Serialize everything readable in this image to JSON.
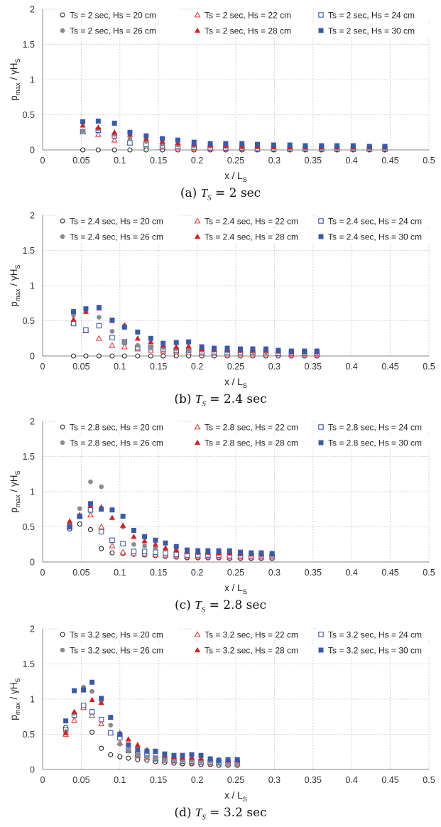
{
  "colors": {
    "open_circle": "#222222",
    "open_triangle": "#e03c3c",
    "open_square": "#3a5aa8",
    "filled_circle": "#8a8a8a",
    "filled_triangle": "#d42020",
    "filled_square": "#3a5aa8"
  },
  "chart_data": [
    {
      "type": "scatter",
      "caption_prefix": "(a)",
      "caption_value": "= 2 sec",
      "xlabel": "x / L",
      "xlabel_sub": "S",
      "ylabel": "p",
      "ylabel_sub": "max",
      "ylabel_tail": " / γH",
      "ylabel_sub2": "S",
      "xlim": [
        0,
        0.5
      ],
      "ylim": [
        0,
        2
      ],
      "xticks": [
        "0",
        "0.05",
        "0.1",
        "0.15",
        "0.2",
        "0.25",
        "0.3",
        "0.35",
        "0.4",
        "0.45",
        "0.5"
      ],
      "yticks": [
        "0",
        "0.5",
        "1",
        "1.5",
        "2"
      ],
      "grid": true,
      "legend_position": "top",
      "x": [
        0.052,
        0.072,
        0.093,
        0.113,
        0.134,
        0.155,
        0.175,
        0.196,
        0.217,
        0.237,
        0.258,
        0.278,
        0.299,
        0.32,
        0.34,
        0.361,
        0.381,
        0.402,
        0.423,
        0.443
      ],
      "series": [
        {
          "name": "Ts = 2 sec, Hs = 20 cm",
          "marker": "circle-open",
          "values": [
            0,
            0,
            0,
            0,
            0,
            0,
            0,
            0,
            0,
            0,
            0,
            0,
            0,
            0,
            0,
            0,
            0,
            0,
            0,
            0
          ]
        },
        {
          "name": "Ts = 2 sec, Hs = 22 cm",
          "marker": "triangle-open",
          "values": [
            0.26,
            0.22,
            0.14,
            0.1,
            0.06,
            0.04,
            0.03,
            0.02,
            0.02,
            0.02,
            0.02,
            0.01,
            0.01,
            0.01,
            0.01,
            0.01,
            0.01,
            0.01,
            0.01,
            0.01
          ]
        },
        {
          "name": "Ts = 2 sec, Hs = 24 cm",
          "marker": "square-open",
          "values": [
            0.26,
            0.28,
            0.2,
            0.1,
            0.08,
            0.06,
            0.05,
            0.04,
            0.03,
            0.03,
            0.03,
            0.02,
            0.02,
            0.02,
            0.02,
            0.02,
            0.02,
            0.02,
            0.02,
            0.02
          ]
        },
        {
          "name": "Ts = 2 sec, Hs = 26 cm",
          "marker": "circle-filled",
          "values": [
            0.27,
            0.3,
            0.22,
            0.16,
            0.12,
            0.08,
            0.07,
            0.06,
            0.05,
            0.05,
            0.04,
            0.04,
            0.04,
            0.03,
            0.03,
            0.03,
            0.03,
            0.03,
            0.03,
            0.03
          ]
        },
        {
          "name": "Ts = 2 sec, Hs = 28 cm",
          "marker": "triangle-filled",
          "values": [
            0.35,
            0.32,
            0.25,
            0.22,
            0.16,
            0.12,
            0.1,
            0.08,
            0.07,
            0.06,
            0.05,
            0.05,
            0.04,
            0.04,
            0.04,
            0.04,
            0.04,
            0.04,
            0.04,
            0.04
          ]
        },
        {
          "name": "Ts = 2 sec, Hs = 30 cm",
          "marker": "square-filled",
          "values": [
            0.4,
            0.41,
            0.38,
            0.25,
            0.2,
            0.16,
            0.14,
            0.11,
            0.09,
            0.09,
            0.09,
            0.08,
            0.07,
            0.07,
            0.06,
            0.06,
            0.06,
            0.06,
            0.05,
            0.05
          ]
        }
      ]
    },
    {
      "type": "scatter",
      "caption_prefix": "(b)",
      "caption_value": "= 2.4 sec",
      "xlabel": "x / L",
      "xlabel_sub": "S",
      "ylabel": "p",
      "ylabel_sub": "max",
      "ylabel_tail": " / γH",
      "ylabel_sub2": "S",
      "xlim": [
        0,
        0.5
      ],
      "ylim": [
        0,
        2
      ],
      "xticks": [
        "0",
        "0.05",
        "0.1",
        "0.15",
        "0.2",
        "0.25",
        "0.3",
        "0.35",
        "0.4",
        "0.45",
        "0.5"
      ],
      "yticks": [
        "0",
        "0.5",
        "1",
        "1.5",
        "2"
      ],
      "grid": true,
      "legend_position": "top",
      "x": [
        0.04,
        0.056,
        0.073,
        0.09,
        0.106,
        0.123,
        0.14,
        0.156,
        0.173,
        0.189,
        0.206,
        0.222,
        0.239,
        0.256,
        0.272,
        0.289,
        0.305,
        0.322,
        0.339,
        0.355
      ],
      "series": [
        {
          "name": "Ts = 2.4 sec, Hs = 20 cm",
          "marker": "circle-open",
          "values": [
            0,
            0,
            0,
            0,
            0,
            0,
            0,
            0,
            0,
            0,
            0,
            0,
            0,
            0,
            0,
            0,
            0,
            0,
            0,
            0
          ]
        },
        {
          "name": "Ts = 2.4 sec, Hs = 22 cm",
          "marker": "triangle-open",
          "values": [
            0.47,
            0.36,
            0.25,
            0.15,
            0.13,
            0.1,
            0.08,
            0.07,
            0.06,
            0.05,
            0.04,
            0.04,
            0.03,
            0.03,
            0.03,
            0.03,
            0.03,
            0.02,
            0.02,
            0.02
          ]
        },
        {
          "name": "Ts = 2.4 sec, Hs = 24 cm",
          "marker": "square-open",
          "values": [
            0.46,
            0.37,
            0.43,
            0.26,
            0.2,
            0.12,
            0.12,
            0.1,
            0.08,
            0.08,
            0.06,
            0.06,
            0.05,
            0.05,
            0.05,
            0.05,
            0.04,
            0.04,
            0.04,
            0.04
          ]
        },
        {
          "name": "Ts = 2.4 sec, Hs = 26 cm",
          "marker": "circle-filled",
          "values": [
            0.58,
            0.65,
            0.55,
            0.35,
            0.2,
            0.15,
            0.13,
            0.12,
            0.1,
            0.09,
            0.08,
            0.08,
            0.07,
            0.07,
            0.06,
            0.06,
            0.06,
            0.05,
            0.05,
            0.05
          ]
        },
        {
          "name": "Ts = 2.4 sec, Hs = 28 cm",
          "marker": "triangle-filled",
          "values": [
            0.52,
            0.63,
            0.68,
            0.5,
            0.44,
            0.25,
            0.2,
            0.15,
            0.13,
            0.14,
            0.1,
            0.09,
            0.09,
            0.08,
            0.08,
            0.08,
            0.07,
            0.06,
            0.06,
            0.06
          ]
        },
        {
          "name": "Ts = 2.4 sec, Hs = 30 cm",
          "marker": "square-filled",
          "values": [
            0.63,
            0.67,
            0.69,
            0.51,
            0.41,
            0.34,
            0.25,
            0.18,
            0.19,
            0.2,
            0.13,
            0.11,
            0.11,
            0.1,
            0.1,
            0.1,
            0.08,
            0.07,
            0.07,
            0.07
          ]
        }
      ]
    },
    {
      "type": "scatter",
      "caption_prefix": "(c)",
      "caption_value": "= 2.8 sec",
      "xlabel": "x / L",
      "xlabel_sub": "S",
      "ylabel": "p",
      "ylabel_sub": "max",
      "ylabel_tail": " / γH",
      "ylabel_sub2": "S",
      "xlim": [
        0,
        0.5
      ],
      "ylim": [
        0,
        2
      ],
      "xticks": [
        "0",
        "0.05",
        "0.1",
        "0.15",
        "0.2",
        "0.25",
        "0.3",
        "0.35",
        "0.4",
        "0.45",
        "0.5"
      ],
      "yticks": [
        "0",
        "0.5",
        "1",
        "1.5",
        "2"
      ],
      "grid": true,
      "legend_position": "top",
      "x": [
        0.035,
        0.048,
        0.062,
        0.076,
        0.09,
        0.104,
        0.118,
        0.132,
        0.146,
        0.159,
        0.173,
        0.187,
        0.201,
        0.214,
        0.228,
        0.242,
        0.256,
        0.27,
        0.283,
        0.297
      ],
      "series": [
        {
          "name": "Ts = 2.8 sec, Hs = 20 cm",
          "marker": "circle-open",
          "values": [
            0.47,
            0.54,
            0.46,
            0.19,
            0.13,
            0.12,
            0.11,
            0.1,
            0.09,
            0.08,
            0.07,
            0.06,
            0.06,
            0.06,
            0.06,
            0.05,
            0.05,
            0.05,
            0.05,
            0.05
          ]
        },
        {
          "name": "Ts = 2.8 sec, Hs = 22 cm",
          "marker": "triangle-open",
          "values": [
            0.5,
            0.66,
            0.67,
            0.5,
            0.23,
            0.14,
            0.12,
            0.12,
            0.11,
            0.1,
            0.09,
            0.08,
            0.08,
            0.08,
            0.08,
            0.07,
            0.07,
            0.07,
            0.07,
            0.07
          ]
        },
        {
          "name": "Ts = 2.8 sec, Hs = 24 cm",
          "marker": "square-open",
          "values": [
            0.5,
            0.65,
            0.74,
            0.43,
            0.31,
            0.26,
            0.15,
            0.15,
            0.14,
            0.13,
            0.11,
            0.1,
            0.1,
            0.1,
            0.1,
            0.09,
            0.09,
            0.09,
            0.09,
            0.09
          ]
        },
        {
          "name": "Ts = 2.8 sec, Hs = 26 cm",
          "marker": "circle-filled",
          "values": [
            0.55,
            0.76,
            1.14,
            1.07,
            0.74,
            0.5,
            0.25,
            0.23,
            0.2,
            0.18,
            0.16,
            0.14,
            0.13,
            0.13,
            0.12,
            0.12,
            0.11,
            0.11,
            0.1,
            0.1
          ]
        },
        {
          "name": "Ts = 2.8 sec, Hs = 28 cm",
          "marker": "triangle-filled",
          "values": [
            0.58,
            0.67,
            0.8,
            0.78,
            0.63,
            0.52,
            0.36,
            0.3,
            0.25,
            0.2,
            0.17,
            0.15,
            0.14,
            0.14,
            0.13,
            0.13,
            0.12,
            0.11,
            0.11,
            0.11
          ]
        },
        {
          "name": "Ts = 2.8 sec, Hs = 30 cm",
          "marker": "square-filled",
          "values": [
            0.5,
            0.65,
            0.83,
            0.75,
            0.74,
            0.65,
            0.45,
            0.36,
            0.31,
            0.27,
            0.22,
            0.17,
            0.16,
            0.16,
            0.16,
            0.16,
            0.14,
            0.13,
            0.13,
            0.12
          ]
        }
      ]
    },
    {
      "type": "scatter",
      "caption_prefix": "(d)",
      "caption_value": "= 3.2 sec",
      "xlabel": "x / L",
      "xlabel_sub": "S",
      "ylabel": "p",
      "ylabel_sub": "max",
      "ylabel_tail": " / γH",
      "ylabel_sub2": "S",
      "xlim": [
        0,
        0.5
      ],
      "ylim": [
        0,
        2
      ],
      "xticks": [
        "0",
        "0.05",
        "0.1",
        "0.15",
        "0.2",
        "0.25",
        "0.3",
        "0.35",
        "0.4",
        "0.45",
        "0.5"
      ],
      "yticks": [
        "0",
        "0.5",
        "1",
        "1.5",
        "2"
      ],
      "grid": true,
      "legend_position": "top",
      "x": [
        0.03,
        0.041,
        0.053,
        0.064,
        0.076,
        0.088,
        0.1,
        0.111,
        0.123,
        0.135,
        0.146,
        0.158,
        0.17,
        0.181,
        0.193,
        0.205,
        0.217,
        0.228,
        0.24,
        0.252
      ],
      "series": [
        {
          "name": "Ts = 3.2 sec, Hs = 20 cm",
          "marker": "circle-open",
          "values": [
            0.6,
            0.76,
            0.89,
            0.53,
            0.3,
            0.21,
            0.18,
            0.16,
            0.14,
            0.13,
            0.11,
            0.1,
            0.09,
            0.08,
            0.08,
            0.07,
            0.07,
            0.06,
            0.06,
            0.06
          ]
        },
        {
          "name": "Ts = 3.2 sec, Hs = 22 cm",
          "marker": "triangle-open",
          "values": [
            0.5,
            0.7,
            0.88,
            0.77,
            0.65,
            0.52,
            0.38,
            0.28,
            0.2,
            0.17,
            0.14,
            0.13,
            0.12,
            0.11,
            0.1,
            0.1,
            0.09,
            0.09,
            0.08,
            0.08
          ]
        },
        {
          "name": "Ts = 3.2 sec, Hs = 24 cm",
          "marker": "square-open",
          "values": [
            0.56,
            0.77,
            0.91,
            0.82,
            0.71,
            0.52,
            0.45,
            0.27,
            0.22,
            0.2,
            0.16,
            0.14,
            0.13,
            0.12,
            0.12,
            0.11,
            0.11,
            0.1,
            0.1,
            0.1
          ]
        },
        {
          "name": "Ts = 3.2 sec, Hs = 26 cm",
          "marker": "circle-filled",
          "values": [
            0.54,
            0.8,
            1.17,
            1.11,
            0.98,
            0.63,
            0.36,
            0.26,
            0.21,
            0.18,
            0.16,
            0.15,
            0.14,
            0.13,
            0.13,
            0.12,
            0.12,
            0.11,
            0.11,
            0.11
          ]
        },
        {
          "name": "Ts = 3.2 sec, Hs = 28 cm",
          "marker": "triangle-filled",
          "values": [
            0.52,
            0.82,
            1.13,
            0.99,
            0.95,
            0.74,
            0.52,
            0.43,
            0.35,
            0.28,
            0.25,
            0.2,
            0.18,
            0.17,
            0.17,
            0.16,
            0.15,
            0.14,
            0.13,
            0.13
          ]
        },
        {
          "name": "Ts = 3.2 sec, Hs = 30 cm",
          "marker": "square-filled",
          "values": [
            0.69,
            1.12,
            1.13,
            1.24,
            1.01,
            0.74,
            0.5,
            0.35,
            0.28,
            0.26,
            0.26,
            0.22,
            0.2,
            0.2,
            0.21,
            0.2,
            0.15,
            0.13,
            0.14,
            0.14
          ]
        }
      ]
    }
  ]
}
